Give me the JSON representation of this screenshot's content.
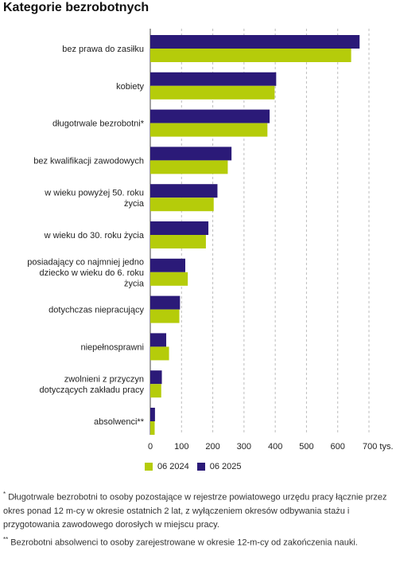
{
  "title": "Kategorie bezrobotnych",
  "chart_data": {
    "type": "bar",
    "orientation": "horizontal",
    "categories": [
      [
        "bez prawa do zasiłku"
      ],
      [
        "kobiety"
      ],
      [
        "długotrwale bezrobotni*"
      ],
      [
        "bez kwalifikacji zawodowych"
      ],
      [
        "w wieku powyżej 50. roku",
        "życia"
      ],
      [
        "w wieku do 30. roku życia"
      ],
      [
        "posiadający co najmniej jedno",
        "dziecko w wieku do 6. roku",
        "życia"
      ],
      [
        "dotychczas niepracujący"
      ],
      [
        "niepełnosprawni"
      ],
      [
        "zwolnieni z przyczyn",
        "dotyczących zakładu pracy"
      ],
      [
        "absolwenci**"
      ]
    ],
    "series": [
      {
        "name": "06 2025",
        "color": "#2b1a78",
        "values": [
          670,
          403,
          382,
          260,
          215,
          186,
          112,
          95,
          51,
          37,
          15
        ]
      },
      {
        "name": "06 2024",
        "color": "#b5cc0a",
        "values": [
          643,
          398,
          375,
          248,
          203,
          178,
          120,
          93,
          60,
          35,
          14
        ]
      }
    ],
    "legend_order": [
      "06 2024",
      "06 2025"
    ],
    "x_ticks": [
      0,
      100,
      200,
      300,
      400,
      500,
      600,
      700
    ],
    "x_unit": "tys.",
    "xlim": [
      0,
      700
    ],
    "grid": "vertical dashed",
    "legend_position": "bottom"
  },
  "footnotes": [
    {
      "marker": "*",
      "text": "Długotrwale bezrobotni to osoby pozostające w rejestrze powiatowego urzędu pracy łącznie przez okres ponad 12 m-cy w okresie ostatnich 2 lat, z wyłączeniem okresów odbywania stażu i przygotowania zawodowego dorosłych w miejscu pracy."
    },
    {
      "marker": "**",
      "text": "Bezrobotni absolwenci to osoby zarejestrowane w okresie 12-m-cy od zakończenia nauki."
    }
  ]
}
